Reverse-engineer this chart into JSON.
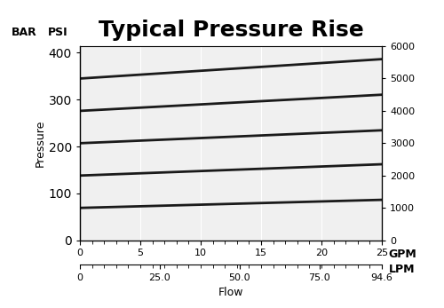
{
  "title": "Typical Pressure Rise",
  "bar_label": "BAR",
  "psi_label": "PSI",
  "gpm_label": "GPM",
  "lpm_label": "LPM",
  "pressure_label": "Pressure",
  "flow_label": "Flow",
  "gpm_min": 0,
  "gpm_max": 25,
  "lpm_min": 0,
  "lpm_max": 94.6,
  "psi_min": 0,
  "psi_max": 6000,
  "bar_min": 0,
  "bar_max": 414,
  "gpm_ticks": [
    0,
    5,
    10,
    15,
    20,
    25
  ],
  "lpm_ticks": [
    0,
    25.0,
    50.0,
    75.0,
    94.6
  ],
  "psi_ticks": [
    0,
    1000,
    2000,
    3000,
    4000,
    5000,
    6000
  ],
  "bar_ticks": [
    0,
    100,
    200,
    300,
    400
  ],
  "curves_start_psi": [
    1000,
    2000,
    3000,
    4000,
    5000
  ],
  "curves_end_psi": [
    1250,
    2350,
    3400,
    4500,
    5600
  ],
  "line_color": "#1a1a1a",
  "line_width": 2.0,
  "bg_color": "#f0f0f0",
  "grid_color": "#ffffff",
  "title_fontsize": 18,
  "label_fontsize": 9,
  "tick_fontsize": 8
}
